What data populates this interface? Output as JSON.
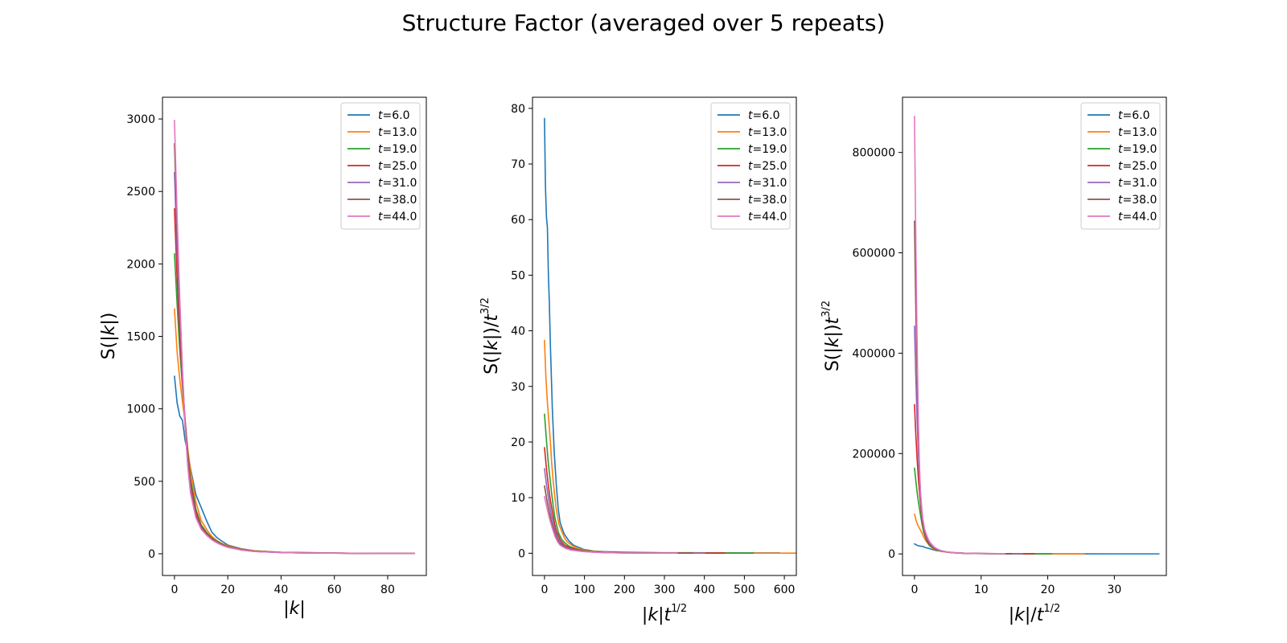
{
  "figure": {
    "suptitle": "Structure Factor (averaged over 5 repeats)"
  },
  "colors": {
    "t=6.0": "#1f77b4",
    "t=13.0": "#ff7f0e",
    "t=19.0": "#2ca02c",
    "t=25.0": "#d62728",
    "t=31.0": "#9467bd",
    "t=38.0": "#8c564b",
    "t=44.0": "#e377c2"
  },
  "chart_data": [
    {
      "type": "line",
      "title": "",
      "xlabel": "|k|",
      "ylabel": "S(|k|)",
      "xlim": [
        -4.5,
        94.5
      ],
      "ylim": [
        -150,
        3150
      ],
      "xticks": [
        0,
        20,
        40,
        60,
        80
      ],
      "yticks": [
        0,
        500,
        1000,
        1500,
        2000,
        2500,
        3000
      ],
      "legend": "top-right",
      "series": [
        {
          "name": "t=6.0",
          "x": [
            0,
            1,
            2,
            3,
            4,
            5,
            6,
            8,
            10,
            12,
            14,
            16,
            18,
            20,
            25,
            30,
            40,
            50,
            60,
            70,
            80,
            90
          ],
          "y": [
            1225,
            1040,
            950,
            920,
            780,
            700,
            590,
            410,
            320,
            230,
            150,
            110,
            85,
            60,
            35,
            20,
            10,
            8,
            5,
            3,
            2,
            2
          ]
        },
        {
          "name": "t=13.0",
          "x": [
            0,
            1,
            2,
            3,
            4,
            5,
            6,
            8,
            10,
            12,
            14,
            16,
            18,
            20,
            25,
            30,
            40,
            50,
            60,
            70,
            80,
            90
          ],
          "y": [
            1690,
            1390,
            1200,
            1050,
            900,
            720,
            580,
            360,
            230,
            170,
            120,
            90,
            70,
            55,
            33,
            20,
            10,
            7,
            5,
            3,
            2,
            2
          ]
        },
        {
          "name": "t=19.0",
          "x": [
            0,
            1,
            2,
            3,
            4,
            5,
            6,
            8,
            10,
            12,
            14,
            16,
            18,
            20,
            25,
            30,
            40,
            50,
            60,
            70,
            80,
            90
          ],
          "y": [
            2070,
            1720,
            1400,
            1150,
            920,
            700,
            520,
            310,
            200,
            150,
            110,
            85,
            65,
            50,
            30,
            18,
            9,
            6,
            4,
            3,
            2,
            2
          ]
        },
        {
          "name": "t=25.0",
          "x": [
            0,
            1,
            2,
            3,
            4,
            5,
            6,
            8,
            10,
            12,
            14,
            16,
            18,
            20,
            25,
            30,
            40,
            50,
            60,
            70,
            80,
            90
          ],
          "y": [
            2380,
            1900,
            1500,
            1180,
            920,
            680,
            490,
            290,
            190,
            140,
            105,
            80,
            62,
            48,
            28,
            17,
            9,
            6,
            4,
            3,
            2,
            2
          ]
        },
        {
          "name": "t=31.0",
          "x": [
            0,
            1,
            2,
            3,
            4,
            5,
            6,
            8,
            10,
            12,
            14,
            16,
            18,
            20,
            25,
            30,
            40,
            50,
            60,
            70,
            80,
            90
          ],
          "y": [
            2630,
            2080,
            1620,
            1230,
            900,
            650,
            460,
            270,
            180,
            135,
            100,
            78,
            60,
            46,
            27,
            16,
            8,
            5,
            4,
            3,
            2,
            2
          ]
        },
        {
          "name": "t=38.0",
          "x": [
            0,
            1,
            2,
            3,
            4,
            5,
            6,
            8,
            10,
            12,
            14,
            16,
            18,
            20,
            25,
            30,
            40,
            50,
            60,
            70,
            80,
            90
          ],
          "y": [
            2830,
            2220,
            1700,
            1250,
            880,
            620,
            440,
            260,
            175,
            130,
            98,
            76,
            58,
            45,
            26,
            16,
            8,
            5,
            4,
            3,
            2,
            2
          ]
        },
        {
          "name": "t=44.0",
          "x": [
            0,
            1,
            2,
            3,
            4,
            5,
            6,
            8,
            10,
            12,
            14,
            16,
            18,
            20,
            25,
            30,
            40,
            50,
            60,
            70,
            80,
            90
          ],
          "y": [
            2990,
            2330,
            1760,
            1270,
            870,
            600,
            420,
            250,
            170,
            128,
            96,
            74,
            57,
            44,
            26,
            15,
            8,
            5,
            4,
            3,
            2,
            2
          ]
        }
      ]
    },
    {
      "type": "line",
      "title": "",
      "xlabel": "|k|t^(1/2)",
      "ylabel": "S(|k|)/t^(3/2)",
      "xlim": [
        -30,
        630
      ],
      "ylim": [
        -4,
        82
      ],
      "xticks": [
        0,
        100,
        200,
        300,
        400,
        500,
        600
      ],
      "yticks": [
        0,
        10,
        20,
        30,
        40,
        50,
        60,
        70,
        80
      ],
      "legend": "top-right",
      "series": [
        {
          "name": "t=6.0",
          "x": [
            0,
            2.4,
            4.9,
            7.3,
            9.8,
            12.2,
            14.7,
            17.1,
            19.6,
            24.5,
            29.4,
            34.3,
            39.2,
            49.0,
            61.2,
            73.5,
            98,
            122,
            147,
            196,
            245,
            294,
            367,
            441,
            514,
            588
          ],
          "y": [
            78.2,
            66,
            60.5,
            58.5,
            50,
            45,
            37.5,
            32,
            26,
            18,
            12.5,
            8,
            5.5,
            3.5,
            2.2,
            1.4,
            0.7,
            0.4,
            0.3,
            0.2,
            0.15,
            0.1,
            0.1,
            0.08,
            0.06,
            0.05
          ]
        },
        {
          "name": "t=13.0",
          "x": [
            0,
            3.6,
            7.2,
            10.8,
            14.4,
            18.0,
            21.6,
            28.8,
            36.1,
            43.3,
            50.5,
            57.7,
            72.1,
            90.1,
            108,
            144,
            180,
            216,
            288,
            360,
            433,
            505,
            577,
            649
          ],
          "y": [
            38.3,
            31.5,
            27.2,
            23.8,
            20.4,
            16.3,
            13.1,
            8.2,
            5.2,
            3.9,
            2.7,
            2.0,
            1.25,
            0.75,
            0.45,
            0.23,
            0.16,
            0.11,
            0.07,
            0.05,
            0.04,
            0.03,
            0.02,
            0.02
          ]
        },
        {
          "name": "t=19.0",
          "x": [
            0,
            4.4,
            8.7,
            13.1,
            17.4,
            21.8,
            26.2,
            34.9,
            43.6,
            52.3,
            61.0,
            69.7,
            87.2,
            109,
            131,
            174,
            218,
            262,
            349,
            436,
            523
          ],
          "y": [
            25.0,
            20.8,
            16.9,
            13.9,
            11.1,
            8.5,
            6.3,
            3.7,
            2.4,
            1.8,
            1.3,
            1.0,
            0.6,
            0.36,
            0.22,
            0.11,
            0.07,
            0.05,
            0.03,
            0.02,
            0.02
          ]
        },
        {
          "name": "t=25.0",
          "x": [
            0,
            5,
            10,
            15,
            20,
            25,
            30,
            40,
            50,
            60,
            70,
            80,
            100,
            125,
            150,
            200,
            250,
            300,
            400,
            450
          ],
          "y": [
            19.0,
            15.2,
            12.0,
            9.4,
            7.4,
            5.4,
            3.9,
            2.3,
            1.5,
            1.1,
            0.84,
            0.64,
            0.38,
            0.22,
            0.14,
            0.07,
            0.05,
            0.03,
            0.02,
            0.02
          ]
        },
        {
          "name": "t=31.0",
          "x": [
            0,
            5.6,
            11.1,
            16.7,
            22.3,
            27.8,
            33.4,
            44.5,
            55.7,
            66.8,
            77.9,
            89.1,
            111,
            139,
            167,
            223,
            278,
            334,
            401
          ],
          "y": [
            15.2,
            12.0,
            9.4,
            7.1,
            5.2,
            3.8,
            2.7,
            1.6,
            1.0,
            0.78,
            0.58,
            0.45,
            0.27,
            0.16,
            0.09,
            0.05,
            0.03,
            0.02,
            0.02
          ]
        },
        {
          "name": "t=38.0",
          "x": [
            0,
            6.2,
            12.3,
            18.5,
            24.7,
            30.8,
            37.0,
            49.3,
            61.6,
            74.0,
            86.3,
            98.6,
            123,
            154,
            185,
            247,
            308,
            370
          ],
          "y": [
            12.1,
            9.5,
            7.3,
            5.3,
            3.8,
            2.6,
            1.9,
            1.1,
            0.75,
            0.56,
            0.42,
            0.33,
            0.19,
            0.11,
            0.07,
            0.03,
            0.02,
            0.02
          ]
        },
        {
          "name": "t=44.0",
          "x": [
            0,
            6.6,
            13.3,
            19.9,
            26.5,
            33.2,
            39.8,
            53.1,
            66.3,
            79.6,
            92.9,
            106,
            133,
            166,
            199,
            265,
            332
          ],
          "y": [
            10.2,
            8.0,
            6.0,
            4.4,
            3.0,
            2.0,
            1.4,
            0.85,
            0.58,
            0.44,
            0.33,
            0.25,
            0.15,
            0.09,
            0.05,
            0.03,
            0.02
          ]
        }
      ]
    },
    {
      "type": "line",
      "title": "",
      "xlabel": "|k|/t^(1/2)",
      "ylabel": "S(|k|)t^(3/2)",
      "xlim": [
        -1.8,
        37.8
      ],
      "ylim": [
        -43000,
        910000
      ],
      "xticks": [
        0,
        10,
        20,
        30
      ],
      "yticks": [
        0,
        200000,
        400000,
        600000,
        800000
      ],
      "legend": "top-right",
      "series": [
        {
          "name": "t=6.0",
          "x": [
            0,
            0.41,
            0.82,
            1.22,
            1.63,
            2.04,
            2.45,
            3.27,
            4.08,
            4.9,
            5.7,
            6.5,
            8.2,
            10.2,
            12.2,
            16.3,
            20.4,
            24.5,
            30.6,
            36.7
          ],
          "y": [
            20000,
            17000,
            15500,
            15000,
            12700,
            11400,
            9600,
            6700,
            5200,
            3750,
            2450,
            1800,
            1000,
            570,
            330,
            160,
            130,
            80,
            50,
            30
          ]
        },
        {
          "name": "t=13.0",
          "x": [
            0,
            0.28,
            0.55,
            0.83,
            1.11,
            1.39,
            1.66,
            2.22,
            2.77,
            3.33,
            3.88,
            4.44,
            5.55,
            6.93,
            8.32,
            11.1,
            13.9,
            16.6,
            22.2,
            25.5
          ],
          "y": [
            79000,
            65000,
            56000,
            49000,
            42000,
            33700,
            27100,
            16900,
            10700,
            7950,
            5600,
            4200,
            2600,
            1540,
            940,
            470,
            330,
            230,
            140,
            100
          ]
        },
        {
          "name": "t=19.0",
          "x": [
            0,
            0.23,
            0.46,
            0.69,
            0.92,
            1.15,
            1.38,
            1.84,
            2.29,
            2.75,
            3.21,
            3.67,
            4.59,
            5.74,
            6.88,
            9.18,
            11.5,
            13.8,
            18.4,
            20.6
          ],
          "y": [
            171000,
            142000,
            116000,
            95000,
            76000,
            58000,
            43000,
            25600,
            16500,
            12400,
            9100,
            7000,
            4100,
            2480,
            1490,
            740,
            500,
            330,
            200,
            160
          ]
        },
        {
          "name": "t=25.0",
          "x": [
            0,
            0.2,
            0.4,
            0.6,
            0.8,
            1.0,
            1.2,
            1.6,
            2.0,
            2.4,
            2.8,
            3.2,
            4.0,
            5.0,
            6.0,
            8.0,
            10.0,
            12.0,
            16.0,
            18.0
          ],
          "y": [
            297500,
            237500,
            187500,
            147500,
            115000,
            85000,
            61300,
            36300,
            23800,
            17500,
            13100,
            10000,
            6000,
            3500,
            2100,
            1100,
            750,
            500,
            300,
            250
          ]
        },
        {
          "name": "t=31.0",
          "x": [
            0,
            0.18,
            0.36,
            0.54,
            0.72,
            0.9,
            1.08,
            1.44,
            1.8,
            2.16,
            2.51,
            2.87,
            3.59,
            4.49,
            5.39,
            7.18,
            8.98,
            10.8,
            14.4,
            16.2
          ],
          "y": [
            454000,
            359000,
            280000,
            212000,
            155000,
            112000,
            79500,
            46600,
            31100,
            23300,
            17300,
            13500,
            7900,
            4700,
            2800,
            1400,
            860,
            520,
            350,
            350
          ]
        },
        {
          "name": "t=38.0",
          "x": [
            0,
            0.16,
            0.32,
            0.49,
            0.65,
            0.81,
            0.97,
            1.3,
            1.62,
            1.95,
            2.27,
            2.6,
            3.24,
            4.06,
            4.87,
            6.49,
            8.11,
            9.73,
            13.0,
            14.6
          ],
          "y": [
            663000,
            520000,
            398000,
            293000,
            206000,
            145000,
            103000,
            60900,
            41000,
            30400,
            23000,
            17800,
            10300,
            6100,
            3700,
            1900,
            1170,
            700,
            470,
            470
          ]
        },
        {
          "name": "t=44.0",
          "x": [
            0,
            0.15,
            0.3,
            0.45,
            0.6,
            0.75,
            0.9,
            1.21,
            1.51,
            1.81,
            2.11,
            2.41,
            3.02,
            3.77,
            4.52,
            6.03,
            7.54,
            9.05,
            12.1,
            13.6
          ],
          "y": [
            872000,
            680000,
            513000,
            371000,
            254000,
            175000,
            122500,
            72900,
            49600,
            37300,
            28000,
            21600,
            12700,
            7600,
            4400,
            2330,
            1460,
            870,
            580,
            580
          ]
        }
      ]
    }
  ]
}
